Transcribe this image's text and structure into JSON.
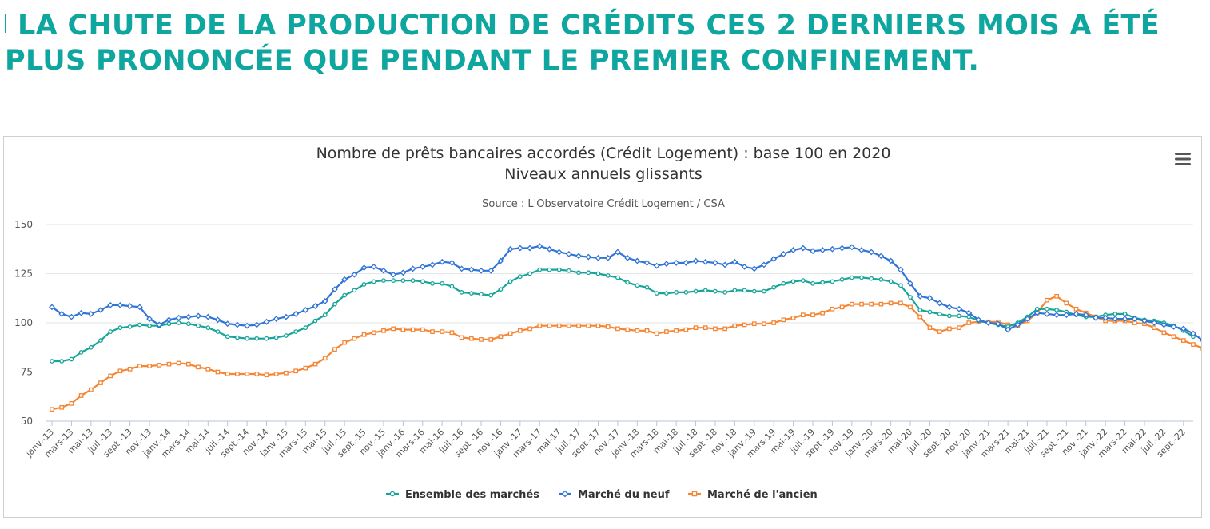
{
  "headline": "LA CHUTE DE LA PRODUCTION DE CRÉDITS CES 2 DERNIERS MOIS A ÉTÉ PLUS PRONONCÉE QUE PENDANT LE PREMIER CONFINEMENT.",
  "menu_icon": "hamburger-menu-icon",
  "chart_data": {
    "type": "line",
    "title": "Nombre de prêts bancaires accordés (Crédit Logement) : base 100 en 2020",
    "subtitle": "Niveaux annuels glissants",
    "caption": "Source : L'Observatoire Crédit Logement / CSA",
    "ylim": [
      50,
      150
    ],
    "y_ticks": [
      50,
      75,
      100,
      125,
      150
    ],
    "grid": true,
    "legend_position": "bottom",
    "x_tick_labels": [
      "janv.-13",
      "mars-13",
      "mai-13",
      "juil.-13",
      "sept.-13",
      "nov.-13",
      "janv.-14",
      "mars-14",
      "mai-14",
      "juil.-14",
      "sept.-14",
      "nov.-14",
      "janv.-15",
      "mars-15",
      "mai-15",
      "juil.-15",
      "sept.-15",
      "nov.-15",
      "janv.-16",
      "mars-16",
      "mai-16",
      "juil.-16",
      "sept.-16",
      "nov.-16",
      "janv.-17",
      "mars-17",
      "mai-17",
      "juil.-17",
      "sept.-17",
      "nov.-17",
      "janv.-18",
      "mars-18",
      "mai-18",
      "juil.-18",
      "sept.-18",
      "nov.-18",
      "janv.-19",
      "mars-19",
      "mai-19",
      "juil.-19",
      "sept.-19",
      "nov.-19",
      "janv.-20",
      "mars-20",
      "mai-20",
      "juil.-20",
      "sept.-20",
      "nov.-20",
      "janv.-21",
      "mars-21",
      "mai-21",
      "juil.-21",
      "sept.-21",
      "nov.-21",
      "janv.-22",
      "mars-22",
      "mai-22",
      "juil.-22",
      "sept.-22"
    ],
    "series": [
      {
        "name": "Ensemble des marchés",
        "color": "#16a599",
        "marker": "circle",
        "values": [
          80.5,
          80.5,
          81.5,
          85,
          87.5,
          91,
          95.5,
          97.5,
          98,
          99,
          98.5,
          98.5,
          99.5,
          100,
          99.5,
          98.5,
          97.5,
          95.5,
          93,
          92.5,
          92,
          92,
          92,
          92.5,
          93.5,
          95.5,
          97.5,
          101,
          104,
          109.5,
          114,
          116.5,
          119.5,
          121,
          121.5,
          121.5,
          121.5,
          121.5,
          121,
          120,
          120,
          118.5,
          115.5,
          115,
          114.5,
          114,
          117,
          121,
          123.5,
          125,
          127,
          127,
          127,
          126.5,
          125.5,
          125.5,
          125,
          124,
          123,
          120.5,
          119,
          118,
          115,
          115,
          115.5,
          115.5,
          116,
          116.5,
          116,
          115.5,
          116.5,
          116.5,
          116,
          116,
          118,
          120,
          121,
          121.5,
          120,
          120.5,
          121,
          122,
          123,
          123,
          122.5,
          122,
          121,
          119,
          113,
          106.5,
          105.5,
          104.5,
          103.5,
          103.5,
          103,
          101,
          100,
          99,
          98,
          100,
          103,
          107,
          107,
          106.5,
          105.5,
          104,
          103,
          103,
          104,
          104.5,
          104.5,
          102.5,
          101.5,
          101,
          100,
          98.5,
          96,
          93
        ]
      },
      {
        "name": "Marché du neuf",
        "color": "#2f74d6",
        "marker": "diamond",
        "values": [
          108,
          104.5,
          103,
          105,
          104.5,
          106.5,
          109,
          109,
          108.5,
          108,
          102,
          99,
          101.5,
          102.5,
          103,
          103.5,
          103,
          101.5,
          99.5,
          99,
          98.5,
          99,
          100.5,
          102,
          103,
          104.5,
          106.5,
          108.5,
          111,
          117,
          122,
          124.5,
          128,
          128.5,
          126.5,
          124.5,
          125.5,
          127.5,
          128.5,
          129.5,
          131,
          130.5,
          127.5,
          127,
          126.5,
          126.5,
          131.5,
          137.5,
          138,
          138,
          139,
          137.5,
          136,
          135,
          134,
          133.5,
          133,
          133,
          136,
          133,
          131.5,
          130.5,
          129,
          130,
          130.5,
          130.5,
          131.5,
          131,
          130.5,
          129.5,
          131,
          128.5,
          127.5,
          129.5,
          132.5,
          135,
          137,
          138,
          136.5,
          137,
          137.5,
          138,
          138.5,
          137,
          136,
          134,
          131.5,
          127,
          120,
          113.5,
          112.5,
          110,
          108,
          107,
          105,
          101.5,
          100,
          99.5,
          96.5,
          99,
          102,
          105,
          104.5,
          104,
          104,
          104.5,
          104,
          102.5,
          102.5,
          102,
          102,
          102,
          101,
          100,
          99,
          98,
          97,
          94.5,
          91
        ]
      },
      {
        "name": "Marché de l'ancien",
        "color": "#f58634",
        "marker": "square",
        "values": [
          56,
          57,
          59,
          63,
          66,
          69.5,
          73,
          75.5,
          76.5,
          78,
          78,
          78.5,
          79,
          79.5,
          79,
          77.5,
          76.5,
          75,
          74,
          74,
          74,
          74,
          73.5,
          74,
          74.5,
          75.5,
          77,
          79,
          82,
          86.5,
          90,
          92,
          94,
          95,
          96,
          97,
          96.5,
          96.5,
          96.5,
          95.5,
          95.5,
          95,
          92.5,
          92,
          91.5,
          91.5,
          93,
          94.5,
          96,
          97,
          98.5,
          98.5,
          98.5,
          98.5,
          98.5,
          98.5,
          98.5,
          98,
          97,
          96.5,
          96,
          96,
          94.5,
          95.5,
          96,
          96.5,
          97.5,
          97.5,
          97,
          97,
          98.5,
          99,
          99.5,
          99.5,
          100,
          101.5,
          102.5,
          104,
          104,
          105,
          107,
          108,
          109.5,
          109.5,
          109.5,
          109.5,
          110,
          110,
          108,
          103,
          97.5,
          95.5,
          97,
          97.5,
          100,
          100.5,
          100.5,
          100.5,
          99,
          98.5,
          101,
          105,
          111.5,
          113.5,
          110,
          107,
          105,
          103,
          101,
          101,
          101,
          100,
          99.5,
          97.5,
          95,
          93,
          91,
          89,
          87,
          86,
          83
        ]
      }
    ]
  }
}
